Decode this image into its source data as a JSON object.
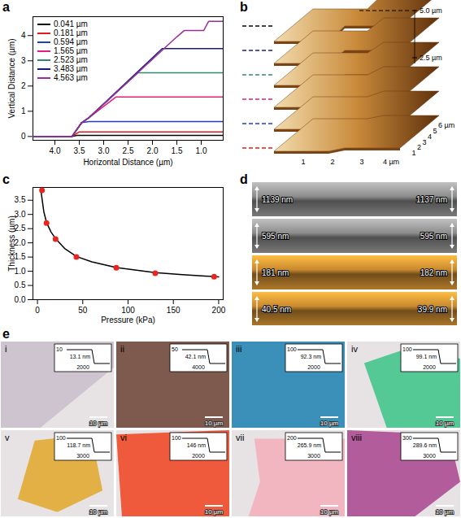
{
  "chart_data": [
    {
      "panel_label": "a",
      "type": "line",
      "x_label": "Horizontal Distance (µm)",
      "y_label": "Vertical Distance (µm)",
      "xlim": [
        4.45,
        0.55
      ],
      "xticks": [
        {
          "value": 4,
          "label": "4.0"
        },
        3.5,
        {
          "value": 3,
          "label": "3.0"
        },
        2.5,
        {
          "value": 2,
          "label": "2.0"
        },
        1.5,
        {
          "value": 1,
          "label": "1.0"
        }
      ],
      "ylim": [
        -0.15,
        4.75
      ],
      "yticks": [
        0,
        1,
        2,
        3,
        4
      ],
      "legend": "top-left",
      "series": [
        {
          "name": "0.041 µm",
          "color": "#000000",
          "x": [
            4.45,
            3.65,
            3.55,
            0.55
          ],
          "values": [
            0,
            0,
            0.041,
            0.041
          ]
        },
        {
          "name": "0.181 µm",
          "color": "#e31a1c",
          "x": [
            4.45,
            3.65,
            3.5,
            0.55
          ],
          "values": [
            0,
            0,
            0.181,
            0.181
          ]
        },
        {
          "name": "0.594 µm",
          "color": "#1f3fbf",
          "x": [
            4.45,
            3.65,
            3.45,
            3.3,
            0.55
          ],
          "values": [
            0,
            0,
            0.55,
            0.594,
            0.594
          ]
        },
        {
          "name": "1.565 µm",
          "color": "#e0207a",
          "x": [
            4.45,
            3.65,
            3.45,
            3.3,
            2.75,
            0.55
          ],
          "values": [
            0,
            0,
            0.55,
            0.75,
            1.565,
            1.565
          ]
        },
        {
          "name": "2.523 µm",
          "color": "#2e8b6e",
          "x": [
            4.45,
            3.65,
            3.45,
            3.3,
            2.3,
            0.55
          ],
          "values": [
            0,
            0,
            0.55,
            0.75,
            2.523,
            2.523
          ]
        },
        {
          "name": "3.483 µm",
          "color": "#1a1a80",
          "x": [
            4.45,
            3.65,
            3.45,
            3.3,
            1.8,
            0.55
          ],
          "values": [
            0,
            0,
            0.55,
            0.75,
            3.483,
            3.483
          ]
        },
        {
          "name": "4.563 µm",
          "color": "#9b2d9b",
          "x": [
            4.45,
            3.65,
            3.45,
            3.3,
            1.5,
            1.35,
            0.95,
            0.85,
            0.55
          ],
          "values": [
            0,
            0,
            0.55,
            0.75,
            3.95,
            4.2,
            4.2,
            4.563,
            4.563
          ]
        }
      ]
    },
    {
      "panel_label": "c",
      "type": "scatter",
      "x_label": "Pressure (kPa)",
      "y_label": "Thickness (µm)",
      "xlim": [
        -5,
        205
      ],
      "xticks": [
        0,
        50,
        100,
        150,
        200
      ],
      "ylim": [
        0,
        3.95
      ],
      "yticks": [
        {
          "value": 0,
          "label": "0.0"
        },
        0.5,
        {
          "value": 1,
          "label": "1.0"
        },
        1.5,
        {
          "value": 2,
          "label": "2.0"
        },
        2.5,
        {
          "value": 3,
          "label": "3.0"
        },
        3.5
      ],
      "series": [
        {
          "type": "line",
          "color": "#000000",
          "line_style": "solid",
          "x": [
            4,
            7,
            10,
            15,
            20,
            30,
            43,
            60,
            87,
            130,
            160,
            200
          ],
          "values": [
            3.8,
            3.1,
            2.72,
            2.38,
            2.15,
            1.8,
            1.52,
            1.33,
            1.13,
            0.95,
            0.88,
            0.8
          ]
        },
        {
          "type": "scatter",
          "color": "#e8251f",
          "marker": "circle",
          "x": [
            5,
            10,
            20,
            43,
            87,
            130,
            195
          ],
          "values": [
            3.85,
            2.7,
            2.13,
            1.5,
            1.12,
            0.93,
            0.81
          ]
        }
      ]
    }
  ],
  "panels": {
    "b": {
      "panel_label": "b",
      "z_labels": [
        "5.0 µm",
        "2.5 µm"
      ],
      "x_labels": [
        "1",
        "2",
        "3",
        "4 µm"
      ],
      "y_labels": [
        "1",
        "2",
        "3",
        "4",
        "5",
        "6 µm"
      ],
      "line_colors": [
        "#e31a1c",
        "#1f3fbf",
        "#e0207a",
        "#2e8b6e",
        "#1a1a80",
        "#000000"
      ]
    },
    "d": {
      "panel_label": "d",
      "rows": [
        {
          "left": "1139 nm",
          "right": "1137 nm",
          "color": "#8c8c8c"
        },
        {
          "left": "595 nm",
          "right": "595 nm",
          "color": "#8c8c8c"
        },
        {
          "left": "181 nm",
          "right": "182 nm",
          "color": "#c8892f"
        },
        {
          "left": "40.5 nm",
          "right": "39.9 nm",
          "color": "#c8892f"
        }
      ]
    },
    "e": {
      "panel_label": "e",
      "scale_bar": "10 µm",
      "items": [
        {
          "label": "i",
          "thickness": "13.1 nm",
          "inset_y": "10",
          "inset_x": "2000",
          "color": "#cdc4cf"
        },
        {
          "label": "ii",
          "thickness": "42.1 nm",
          "inset_y": "50",
          "inset_x": "4000",
          "color": "#7e5a4e"
        },
        {
          "label": "iii",
          "thickness": "92.3 nm",
          "inset_y": "100",
          "inset_x": "2000",
          "color": "#3a90b8"
        },
        {
          "label": "iv",
          "thickness": "99.1 nm",
          "inset_y": "100",
          "inset_x": "2000",
          "color": "#55c995"
        },
        {
          "label": "v",
          "thickness": "118.7 nm",
          "inset_y": "100",
          "inset_x": "3000",
          "color": "#e2b044"
        },
        {
          "label": "vi",
          "thickness": "146 nm",
          "inset_y": "100",
          "inset_x": "2000",
          "color": "#f05a3c"
        },
        {
          "label": "vii",
          "thickness": "265.9 nm",
          "inset_y": "200",
          "inset_x": "3000",
          "color": "#f2b6c0"
        },
        {
          "label": "viii",
          "thickness": "289.6 nm",
          "inset_y": "300",
          "inset_x": "3000",
          "color": "#b25c9c"
        }
      ]
    }
  }
}
